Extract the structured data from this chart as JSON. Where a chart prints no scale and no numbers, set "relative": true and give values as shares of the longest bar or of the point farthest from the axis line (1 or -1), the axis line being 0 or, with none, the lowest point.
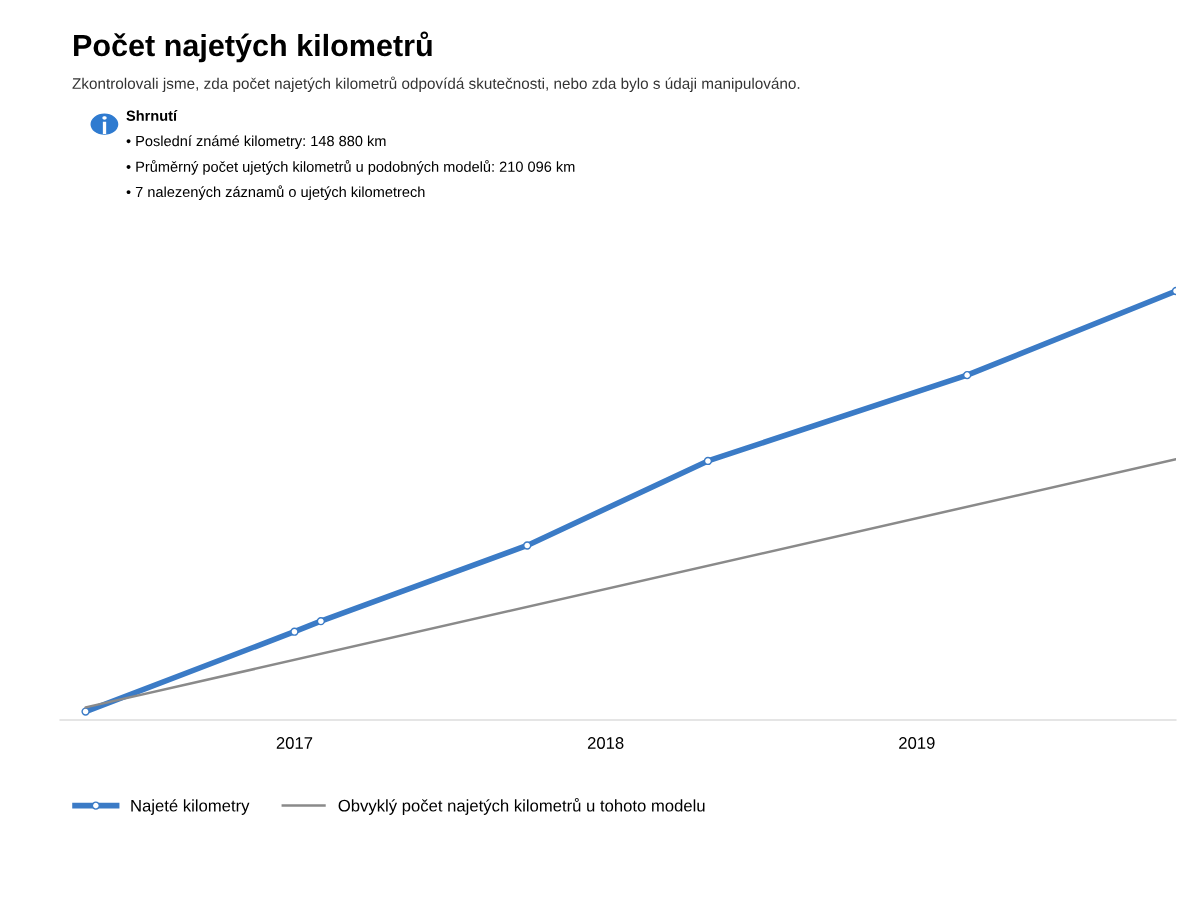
{
  "chart_data": {
    "type": "line",
    "title": "Počet najetých kilometrů",
    "subtitle": "Zkontrolovali jsme, zda počet najetých kilometrů odpovídá skutečnosti, nebo zda bylo s údaji manipulováno.",
    "annotations": [
      "Shrnutí",
      "• Poslední známé kilometry: 148 880 km",
      "• Průměrný počet ujetých kilometrů u podobných modelů: 210 096 km",
      "• 7 nalezených záznamů o ujetých kilometrech"
    ],
    "relative": true,
    "xlim": [
      "2016-04",
      "2019-11"
    ],
    "xticks": [
      "2017",
      "2018",
      "2019"
    ],
    "series": [
      {
        "name": "Najeté kilometry",
        "color": "#3b7bc6",
        "marker": "circle",
        "x": [
          "2016-05",
          "2017-01",
          "2017-02",
          "2017-10",
          "2018-05",
          "2019-03",
          "2019-11"
        ],
        "values": [
          0,
          0.19,
          0.215,
          0.395,
          0.596,
          0.8,
          1
        ]
      },
      {
        "name": "Obvyklý počet najetých kilometrů u tohoto modelu",
        "color": "#8a8a8a",
        "x": [
          "2016-05",
          "2019-11"
        ],
        "values": [
          0.01,
          0.6
        ]
      }
    ],
    "legend": "bottom left",
    "grid": false
  }
}
